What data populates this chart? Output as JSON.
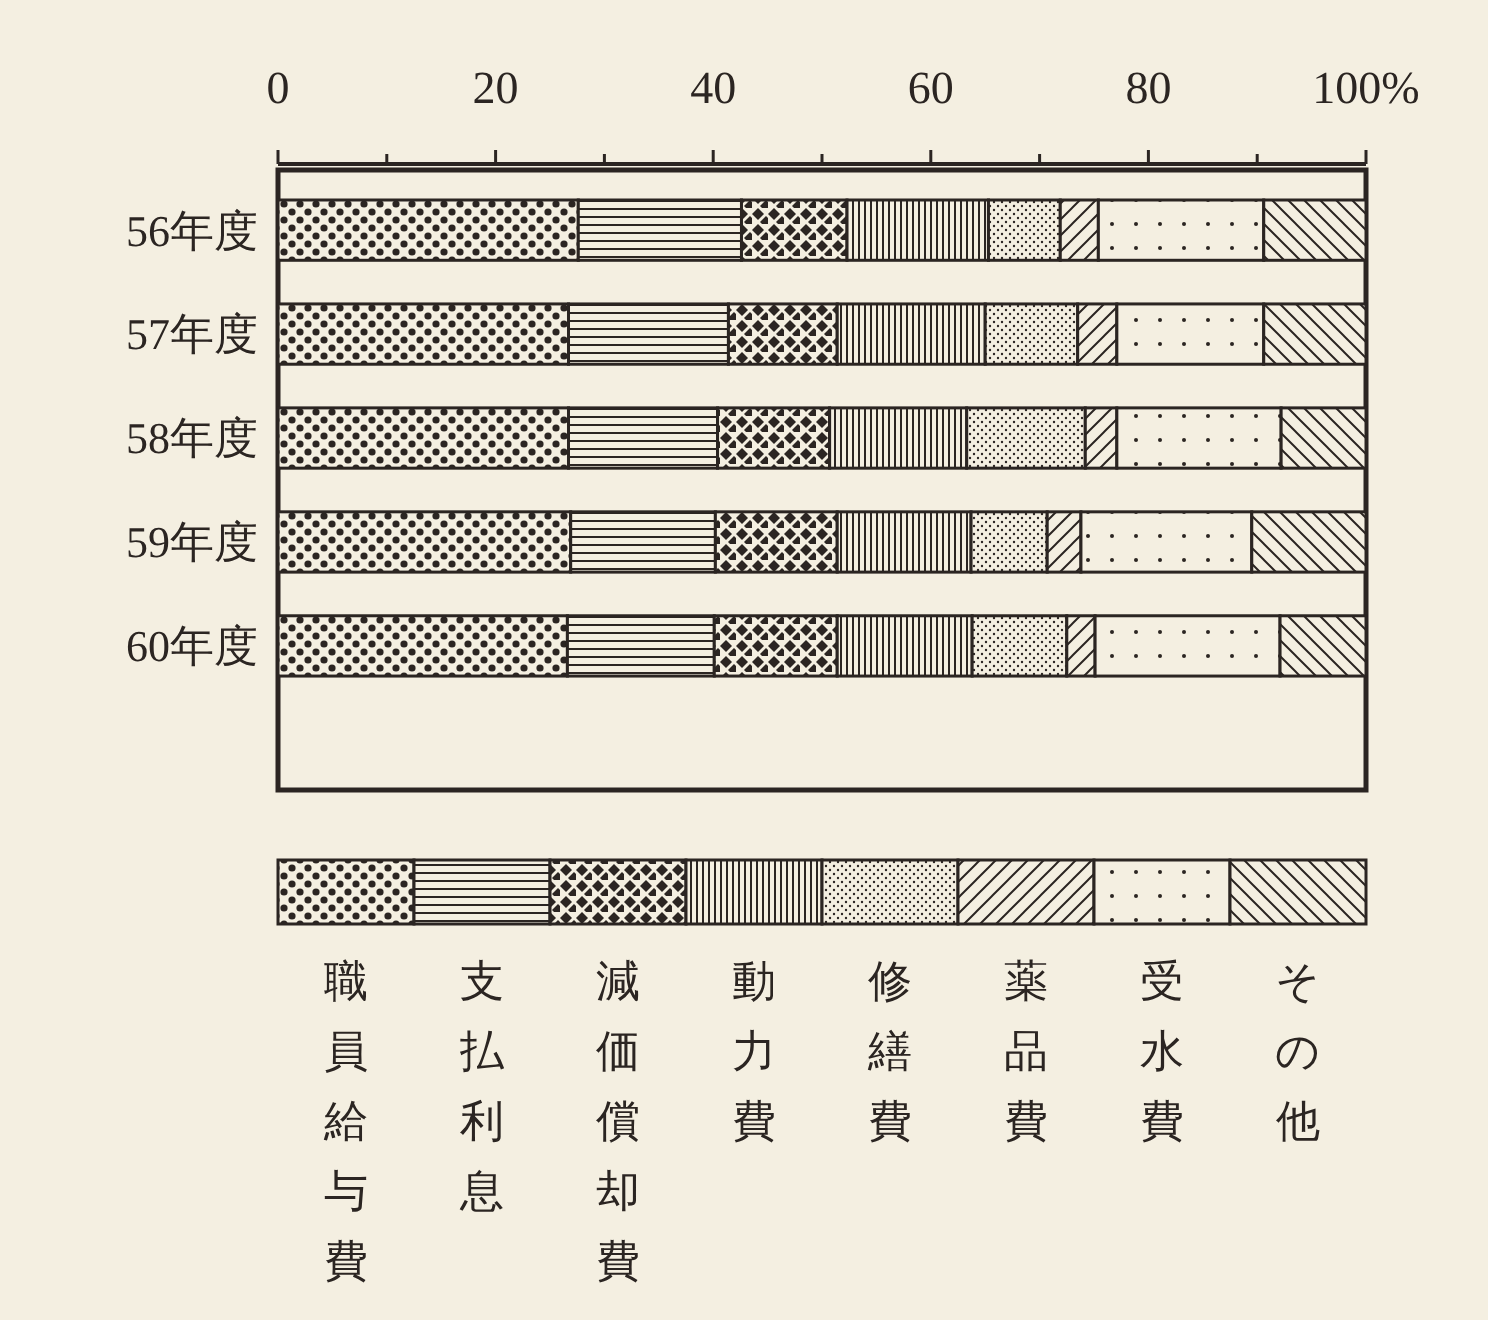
{
  "chart_data": {
    "type": "bar",
    "orientation": "horizontal",
    "stacked": true,
    "categories": [
      "56年度",
      "57年度",
      "58年度",
      "59年度",
      "60年度"
    ],
    "series": [
      {
        "name": "職員給与費",
        "color": "#2b2522",
        "values": [
          27.6,
          26.7,
          26.7,
          26.9,
          26.6
        ]
      },
      {
        "name": "支払利息",
        "color": "#2b2522",
        "values": [
          15.0,
          14.7,
          13.7,
          13.3,
          13.5
        ]
      },
      {
        "name": "減価償却費",
        "color": "#2b2522",
        "values": [
          9.7,
          10.0,
          10.3,
          11.2,
          11.3
        ]
      },
      {
        "name": "動力費",
        "color": "#2b2522",
        "values": [
          13.0,
          13.6,
          12.6,
          12.3,
          12.4
        ]
      },
      {
        "name": "修繕費",
        "color": "#2b2522",
        "values": [
          6.6,
          8.5,
          10.9,
          7.0,
          8.7
        ]
      },
      {
        "name": "薬品費",
        "color": "#2b2522",
        "values": [
          3.5,
          3.6,
          2.9,
          3.1,
          2.6
        ]
      },
      {
        "name": "受水費",
        "color": "#2b2522",
        "values": [
          15.2,
          13.5,
          15.1,
          15.7,
          17.0
        ]
      },
      {
        "name": "その他",
        "color": "#2b2522",
        "values": [
          9.4,
          9.4,
          7.8,
          10.5,
          7.9
        ]
      }
    ],
    "xlim": [
      0,
      100
    ],
    "xticks": [
      0,
      {
        "value": 10,
        "label": null
      },
      20,
      {
        "value": 30,
        "label": null
      },
      40,
      {
        "value": 50,
        "label": null
      },
      60,
      {
        "value": 70,
        "label": null
      },
      80,
      {
        "value": 90,
        "label": null
      },
      {
        "value": 100,
        "label": "100%"
      }
    ],
    "legend": "bottom",
    "grid": false
  }
}
